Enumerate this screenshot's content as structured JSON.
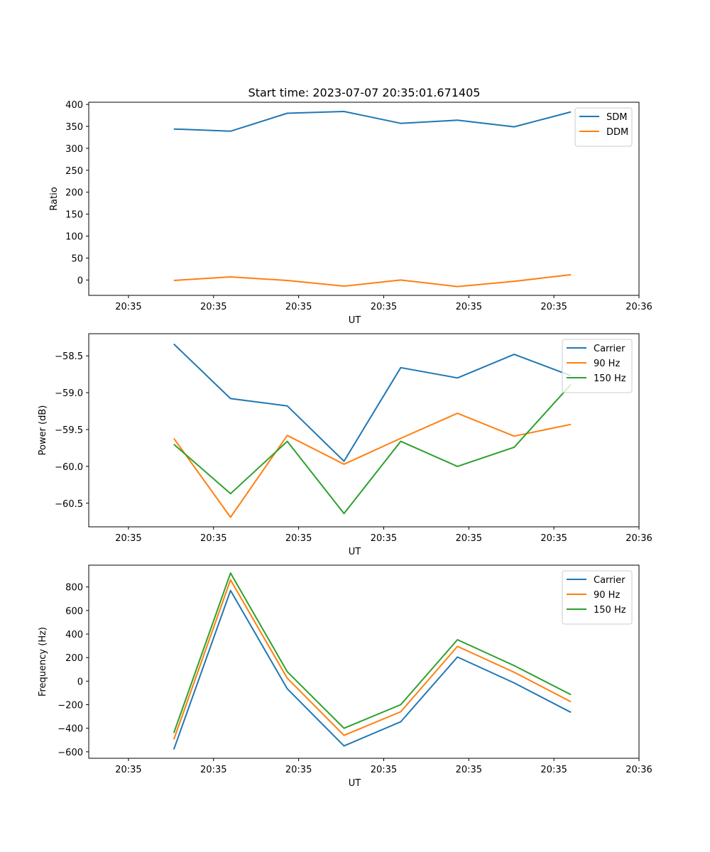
{
  "figure_title": "Start time: 2023-07-07 20:35:01.671405",
  "colors": {
    "c0": "#1f77b4",
    "c1": "#ff7f0e",
    "c2": "#2ca02c"
  },
  "chart_data": [
    {
      "type": "line",
      "title": "Start time: 2023-07-07 20:35:01.671405",
      "xlabel": "UT",
      "ylabel": "Ratio",
      "x": [
        1,
        2,
        3,
        4,
        5,
        6,
        7,
        8
      ],
      "x_tick_values": [
        0.2,
        1.7,
        3.2,
        4.7,
        6.2,
        7.7,
        9.2
      ],
      "x_tick_labels": [
        "20:35",
        "20:35",
        "20:35",
        "20:35",
        "20:35",
        "20:35",
        "20:36"
      ],
      "xlim": [
        -0.5,
        9.2
      ],
      "ylim": [
        -35,
        405
      ],
      "y_ticks": [
        0,
        50,
        100,
        150,
        200,
        250,
        300,
        350,
        400
      ],
      "y_tick_labels": [
        "0",
        "50",
        "100",
        "150",
        "200",
        "250",
        "300",
        "350",
        "400"
      ],
      "legend_position": "top-right",
      "series": [
        {
          "name": "SDM",
          "color": "#1f77b4",
          "values": [
            344,
            339,
            380,
            384,
            357,
            364,
            349,
            383
          ]
        },
        {
          "name": "DDM",
          "color": "#ff7f0e",
          "values": [
            -1,
            7,
            -1,
            -14,
            0,
            -15,
            -3,
            12
          ]
        }
      ]
    },
    {
      "type": "line",
      "title": "",
      "xlabel": "UT",
      "ylabel": "Power (dB)",
      "x": [
        1,
        2,
        3,
        4,
        5,
        6,
        7,
        8
      ],
      "x_tick_values": [
        0.2,
        1.7,
        3.2,
        4.7,
        6.2,
        7.7,
        9.2
      ],
      "x_tick_labels": [
        "20:35",
        "20:35",
        "20:35",
        "20:35",
        "20:35",
        "20:35",
        "20:36"
      ],
      "xlim": [
        -0.5,
        9.2
      ],
      "ylim": [
        -60.82,
        -58.2
      ],
      "y_ticks": [
        -58.5,
        -59.0,
        -59.5,
        -60.0,
        -60.5
      ],
      "y_tick_labels": [
        "−58.5",
        "−59.0",
        "−59.5",
        "−60.0",
        "−60.5"
      ],
      "legend_position": "top-right",
      "series": [
        {
          "name": "Carrier",
          "color": "#1f77b4",
          "values": [
            -58.34,
            -59.08,
            -59.18,
            -59.93,
            -58.66,
            -58.8,
            -58.48,
            -58.77
          ]
        },
        {
          "name": "90 Hz",
          "color": "#ff7f0e",
          "values": [
            -59.62,
            -60.69,
            -59.58,
            -59.97,
            -59.62,
            -59.28,
            -59.59,
            -59.43
          ]
        },
        {
          "name": "150 Hz",
          "color": "#2ca02c",
          "values": [
            -59.7,
            -60.37,
            -59.66,
            -60.64,
            -59.66,
            -60.0,
            -59.74,
            -58.89
          ]
        }
      ]
    },
    {
      "type": "line",
      "title": "",
      "xlabel": "UT",
      "ylabel": "Frequency (Hz)",
      "x": [
        1,
        2,
        3,
        4,
        5,
        6,
        7,
        8
      ],
      "x_tick_values": [
        0.2,
        1.7,
        3.2,
        4.7,
        6.2,
        7.7,
        9.2
      ],
      "x_tick_labels": [
        "20:35",
        "20:35",
        "20:35",
        "20:35",
        "20:35",
        "20:35",
        "20:36"
      ],
      "xlim": [
        -0.5,
        9.2
      ],
      "ylim": [
        -655,
        985
      ],
      "y_ticks": [
        -600,
        -400,
        -200,
        0,
        200,
        400,
        600,
        800
      ],
      "y_tick_labels": [
        "−600",
        "−400",
        "−200",
        "0",
        "200",
        "400",
        "600",
        "800"
      ],
      "legend_position": "top-right",
      "series": [
        {
          "name": "Carrier",
          "color": "#1f77b4",
          "values": [
            -580,
            770,
            -65,
            -550,
            -345,
            205,
            -15,
            -265
          ]
        },
        {
          "name": "90 Hz",
          "color": "#ff7f0e",
          "values": [
            -495,
            860,
            25,
            -460,
            -260,
            295,
            75,
            -175
          ]
        },
        {
          "name": "150 Hz",
          "color": "#2ca02c",
          "values": [
            -440,
            918,
            80,
            -400,
            -200,
            352,
            132,
            -115
          ]
        }
      ]
    }
  ]
}
